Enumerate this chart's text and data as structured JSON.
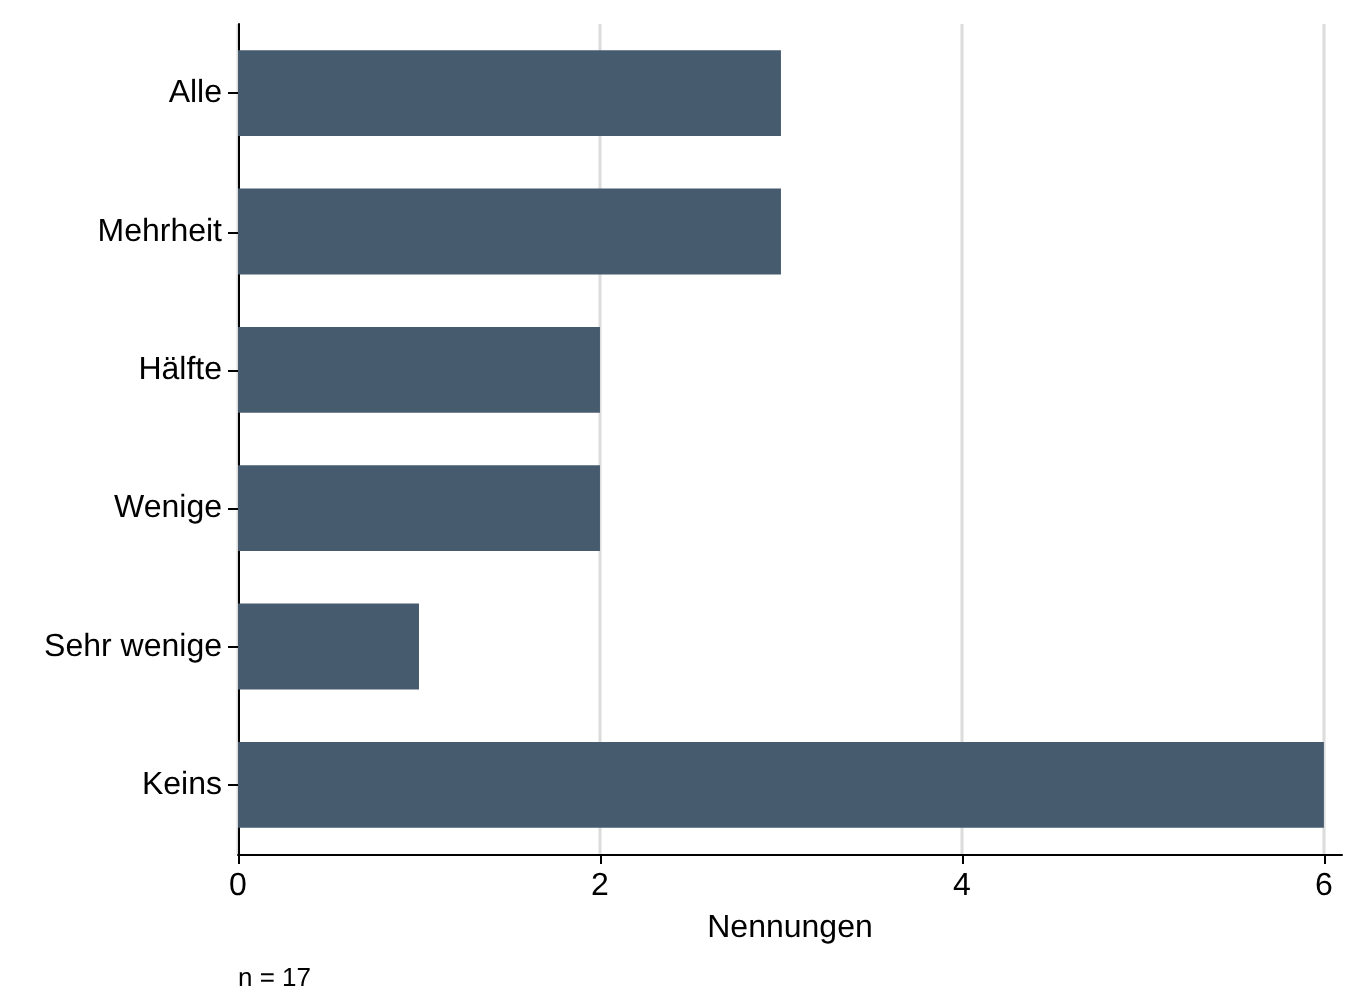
{
  "chart_data": {
    "type": "bar",
    "orientation": "horizontal",
    "categories": [
      "Alle",
      "Mehrheit",
      "Hälfte",
      "Wenige",
      "Sehr wenige",
      "Keins"
    ],
    "values": [
      3,
      3,
      2,
      2,
      1,
      6
    ],
    "color": "#475b6e",
    "xlabel": "Nennungen",
    "xlim": [
      0,
      6.1
    ],
    "xticks": [
      0,
      2,
      4,
      6
    ],
    "grid": "x",
    "annotations": [
      "n = 17"
    ]
  }
}
